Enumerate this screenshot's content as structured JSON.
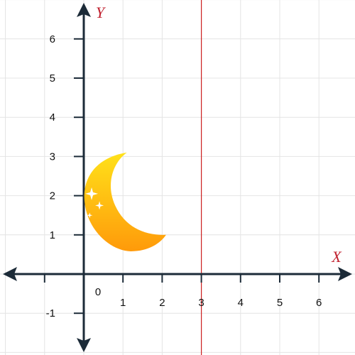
{
  "chart_data": {
    "type": "diagram",
    "x_axis": {
      "name": "X",
      "range": [
        -2,
        7
      ],
      "ticks": [
        -1,
        1,
        2,
        3,
        4,
        5,
        6
      ],
      "tick_labels": [
        "",
        "1",
        "2",
        "3",
        "4",
        "5",
        "6"
      ]
    },
    "y_axis": {
      "name": "Y",
      "range": [
        -2,
        7
      ],
      "ticks": [
        -1,
        1,
        2,
        3,
        4,
        5,
        6
      ],
      "tick_labels": [
        "-1",
        "1",
        "2",
        "3",
        "4",
        "5",
        "6"
      ]
    },
    "origin_label": "0",
    "grid": true,
    "vertical_line": {
      "x": 3,
      "color": "#cc1f1f"
    },
    "moon": {
      "top": [
        1.1,
        3.1
      ],
      "bottom": [
        2.1,
        1.0
      ],
      "sparkles": [
        [
          0.2,
          2.05
        ],
        [
          0.4,
          1.75
        ],
        [
          0.15,
          1.5
        ]
      ],
      "colors": {
        "light": "#ffe11a",
        "dark": "#ff9a0a"
      }
    },
    "colors": {
      "axis": "#1c2b38",
      "grid": "#e4e4e4",
      "axis_name": "#c0212f"
    }
  }
}
